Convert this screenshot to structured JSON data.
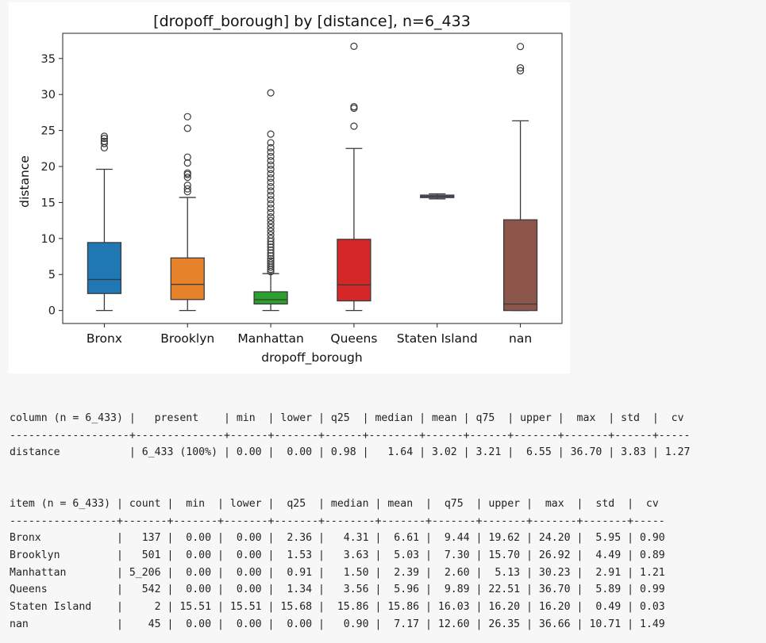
{
  "chart_data": {
    "type": "box",
    "title": "[dropoff_borough] by [distance], n=6_433",
    "xlabel": "dropoff_borough",
    "ylabel": "distance",
    "ylim": [
      -1.8,
      38.5
    ],
    "yticks": [
      0,
      5,
      10,
      15,
      20,
      25,
      30,
      35
    ],
    "categories": [
      "Bronx",
      "Brooklyn",
      "Manhattan",
      "Queens",
      "Staten Island",
      "nan"
    ],
    "colors": [
      "#1f77b4",
      "#e6832a",
      "#2ca02c",
      "#d62728",
      "#9467bd",
      "#8c564b"
    ],
    "boxes": [
      {
        "name": "Bronx",
        "q25": 2.36,
        "median": 4.31,
        "q75": 9.44,
        "lower": 0.0,
        "upper": 19.62,
        "outliers": [
          22.6,
          23.2,
          23.5,
          23.9,
          24.2
        ]
      },
      {
        "name": "Brooklyn",
        "q25": 1.53,
        "median": 3.63,
        "q75": 7.3,
        "lower": 0.0,
        "upper": 15.7,
        "outliers": [
          16.5,
          16.9,
          17.4,
          18.5,
          18.9,
          19.1,
          20.5,
          21.3,
          25.3,
          26.92
        ]
      },
      {
        "name": "Manhattan",
        "q25": 0.91,
        "median": 1.5,
        "q75": 2.6,
        "lower": 0.0,
        "upper": 5.13,
        "outliers": [
          5.4,
          5.7,
          6.0,
          6.3,
          6.6,
          6.9,
          7.2,
          7.6,
          8.0,
          8.4,
          8.8,
          9.2,
          9.6,
          10.0,
          10.5,
          11.0,
          11.5,
          12.0,
          12.5,
          13.0,
          13.6,
          14.2,
          14.8,
          15.4,
          16.0,
          16.6,
          17.2,
          17.8,
          18.4,
          19.0,
          19.6,
          20.2,
          20.8,
          21.4,
          22.0,
          22.6,
          23.3,
          24.5,
          30.23
        ]
      },
      {
        "name": "Queens",
        "q25": 1.34,
        "median": 3.56,
        "q75": 9.89,
        "lower": 0.0,
        "upper": 22.51,
        "outliers": [
          25.6,
          28.1,
          28.3,
          36.7
        ]
      },
      {
        "name": "Staten Island",
        "q25": 15.68,
        "median": 15.86,
        "q75": 16.03,
        "lower": 15.51,
        "upper": 16.2,
        "outliers": []
      },
      {
        "name": "nan",
        "q25": 0.0,
        "median": 0.9,
        "q75": 12.6,
        "lower": 0.0,
        "upper": 26.35,
        "outliers": [
          33.3,
          33.7,
          36.66
        ]
      }
    ]
  },
  "summary_table": {
    "header": "column (n = 6_433) |   present    | min  | lower | q25  | median | mean | q75  | upper |  max  | std  |  cv",
    "separator": "-------------------+--------------+------+-------+------+--------+------+------+-------+-------+------+-----",
    "rows": [
      "distance           | 6_433 (100%) | 0.00 |  0.00 | 0.98 |   1.64 | 3.02 | 3.21 |  6.55 | 36.70 | 3.83 | 1.27"
    ]
  },
  "item_table": {
    "header": "item (n = 6_433) | count |  min  | lower |  q25  | median | mean  |  q75  | upper |  max  |  std  |  cv",
    "separator": "-----------------+-------+-------+-------+-------+--------+-------+-------+-------+-------+-------+-----",
    "rows": [
      "Bronx            |   137 |  0.00 |  0.00 |  2.36 |   4.31 |  6.61 |  9.44 | 19.62 | 24.20 |  5.95 | 0.90",
      "Brooklyn         |   501 |  0.00 |  0.00 |  1.53 |   3.63 |  5.03 |  7.30 | 15.70 | 26.92 |  4.49 | 0.89",
      "Manhattan        | 5_206 |  0.00 |  0.00 |  0.91 |   1.50 |  2.39 |  2.60 |  5.13 | 30.23 |  2.91 | 1.21",
      "Queens           |   542 |  0.00 |  0.00 |  1.34 |   3.56 |  5.96 |  9.89 | 22.51 | 36.70 |  5.89 | 0.99",
      "Staten Island    |     2 | 15.51 | 15.51 | 15.68 |  15.86 | 15.86 | 16.03 | 16.20 | 16.20 |  0.49 | 0.03",
      "nan              |    45 |  0.00 |  0.00 |  0.00 |   0.90 |  7.17 | 12.60 | 26.35 | 36.66 | 10.71 | 1.49"
    ]
  }
}
